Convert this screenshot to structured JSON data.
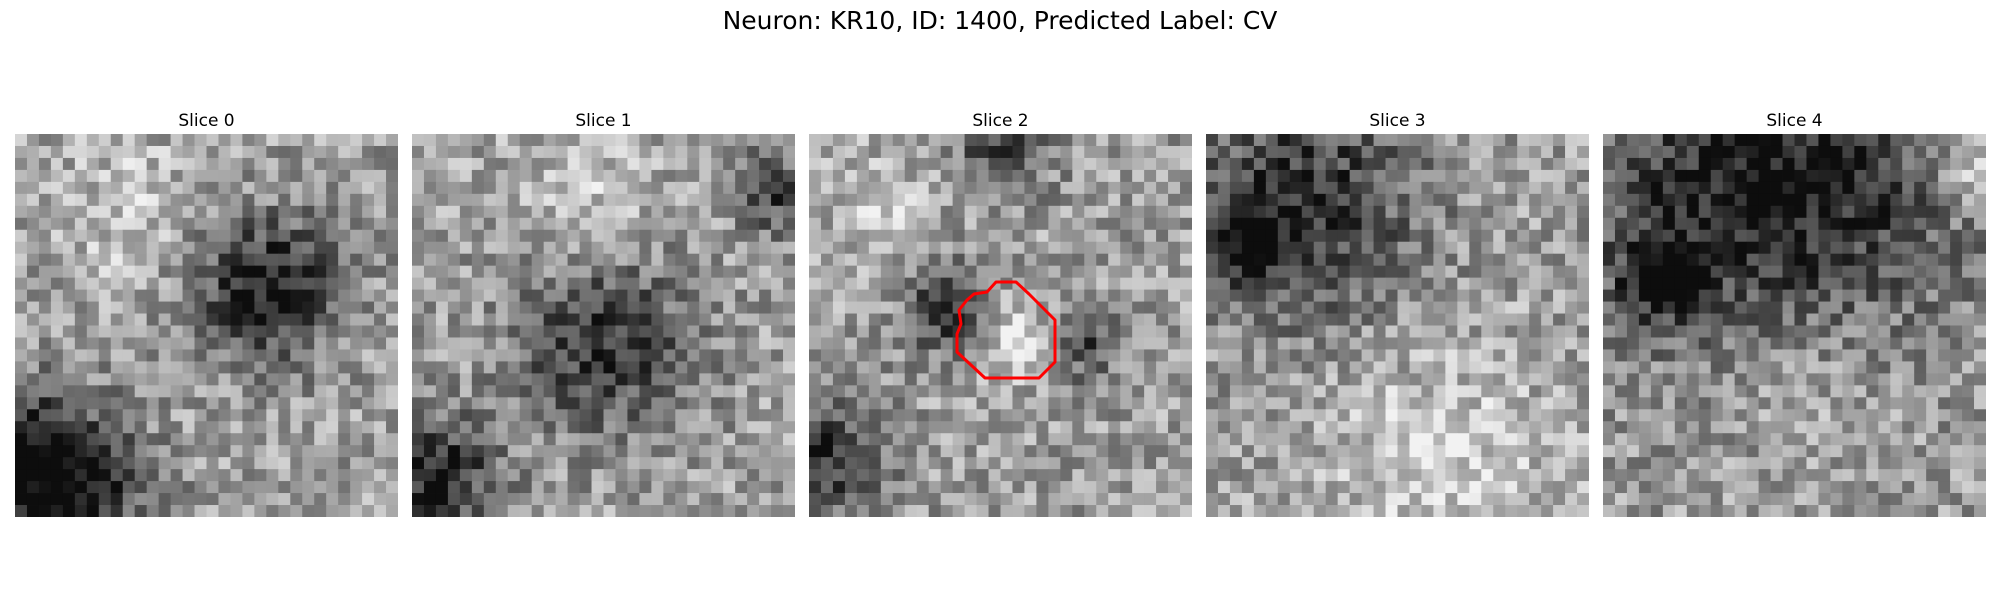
{
  "figure": {
    "title": "Neuron: KR10, ID: 1400, Predicted Label: CV",
    "colormap": "gray",
    "contour_color": "#ff0000"
  },
  "panels": [
    {
      "title": "Slice 0",
      "seed": 11,
      "dark_blobs": [
        [
          0.66,
          0.4,
          0.18,
          0.55
        ],
        [
          0.05,
          0.85,
          0.18,
          0.45
        ],
        [
          0.15,
          0.95,
          0.2,
          0.4
        ]
      ],
      "bright_blobs": [
        [
          0.3,
          0.2,
          0.2,
          0.15
        ]
      ],
      "contour": false
    },
    {
      "title": "Slice 1",
      "seed": 23,
      "dark_blobs": [
        [
          0.5,
          0.55,
          0.22,
          0.45
        ],
        [
          0.07,
          0.9,
          0.15,
          0.5
        ],
        [
          0.95,
          0.15,
          0.1,
          0.4
        ]
      ],
      "bright_blobs": [
        [
          0.45,
          0.15,
          0.2,
          0.15
        ]
      ],
      "contour": false
    },
    {
      "title": "Slice 2",
      "seed": 37,
      "dark_blobs": [
        [
          0.38,
          0.46,
          0.12,
          0.5
        ],
        [
          0.72,
          0.55,
          0.1,
          0.35
        ],
        [
          0.5,
          0.05,
          0.12,
          0.35
        ],
        [
          0.05,
          0.85,
          0.15,
          0.45
        ]
      ],
      "bright_blobs": [
        [
          0.53,
          0.52,
          0.13,
          0.25
        ],
        [
          0.2,
          0.2,
          0.15,
          0.15
        ]
      ],
      "contour": true
    },
    {
      "title": "Slice 3",
      "seed": 41,
      "dark_blobs": [
        [
          0.25,
          0.18,
          0.3,
          0.45
        ],
        [
          0.1,
          0.28,
          0.1,
          0.4
        ]
      ],
      "bright_blobs": [
        [
          0.6,
          0.85,
          0.3,
          0.2
        ]
      ],
      "contour": false
    },
    {
      "title": "Slice 4",
      "seed": 53,
      "dark_blobs": [
        [
          0.45,
          0.18,
          0.45,
          0.6
        ],
        [
          0.15,
          0.38,
          0.1,
          0.5
        ]
      ],
      "bright_blobs": [
        [
          0.5,
          0.55,
          0.3,
          0.2
        ],
        [
          0.95,
          0.1,
          0.1,
          0.3
        ]
      ],
      "contour": false
    }
  ]
}
